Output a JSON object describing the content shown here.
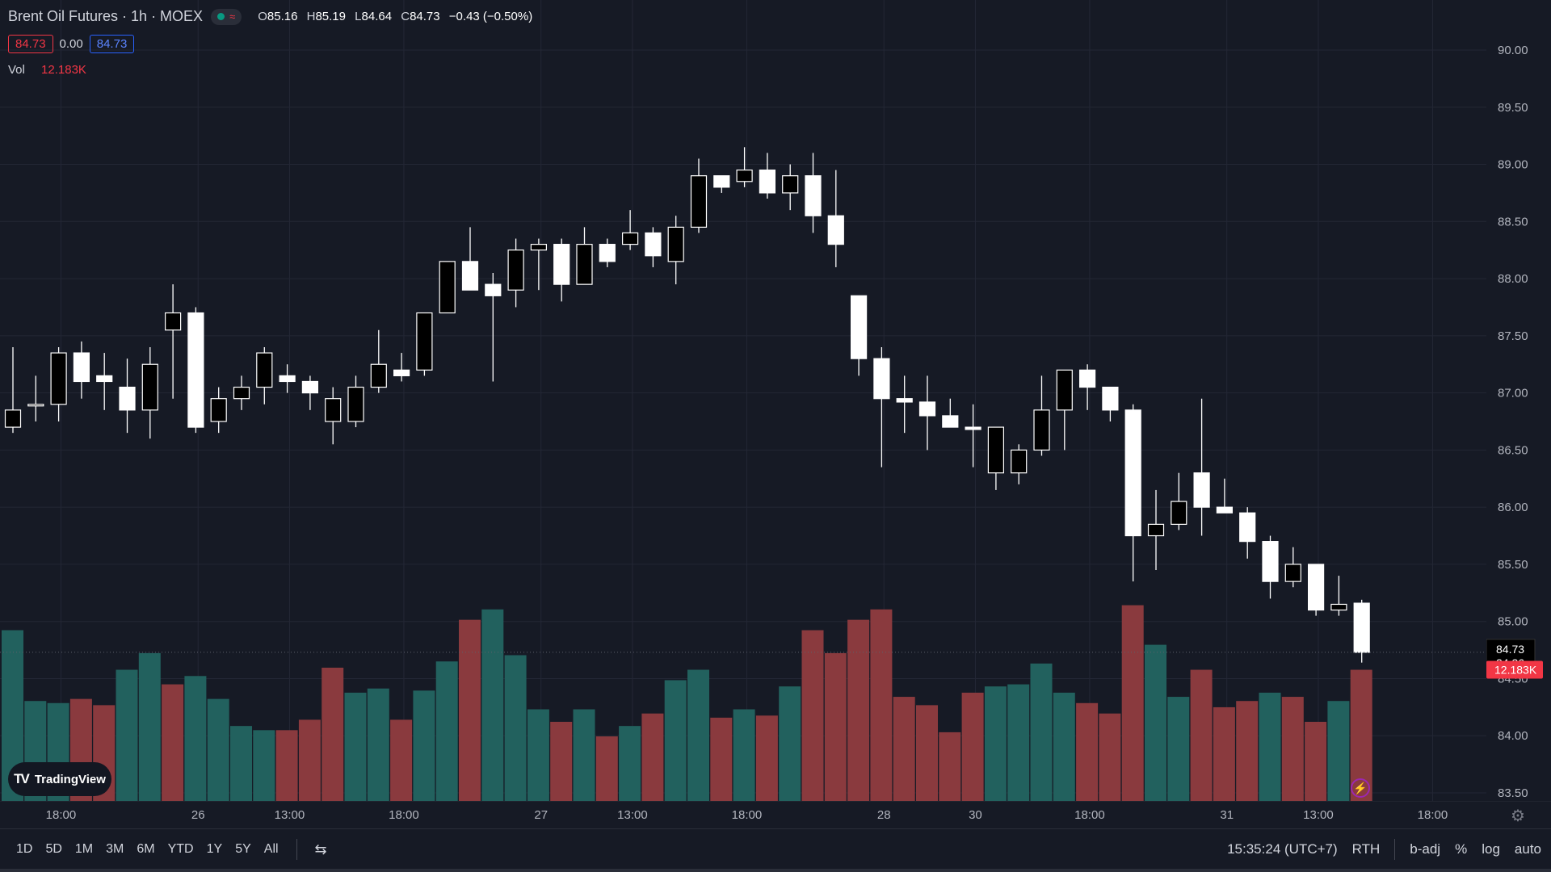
{
  "header": {
    "title": "Brent Oil Futures · 1h · MOEX",
    "ohlc": {
      "o_label": "O",
      "o": "85.16",
      "h_label": "H",
      "h": "85.19",
      "l_label": "L",
      "l": "84.64",
      "c_label": "C",
      "c": "84.73",
      "change": "−0.43 (−0.50%)"
    },
    "bid": "84.73",
    "spread": "0.00",
    "ask": "84.73",
    "volume_label": "Vol",
    "volume_value": "12.183K"
  },
  "logo": {
    "text": "TradingView"
  },
  "price_badge": {
    "price": "84.73",
    "countdown": "24:36"
  },
  "volume_badge": "12.183K",
  "time_ticks": [
    {
      "label": "18:00",
      "i": 2.1
    },
    {
      "label": "26",
      "i": 8.1
    },
    {
      "label": "13:00",
      "i": 12.1
    },
    {
      "label": "18:00",
      "i": 17.1
    },
    {
      "label": "27",
      "i": 23.1
    },
    {
      "label": "13:00",
      "i": 27.1
    },
    {
      "label": "18:00",
      "i": 32.1
    },
    {
      "label": "28",
      "i": 38.1
    },
    {
      "label": "30",
      "i": 42.1
    },
    {
      "label": "18:00",
      "i": 47.1
    },
    {
      "label": "31",
      "i": 53.1
    },
    {
      "label": "13:00",
      "i": 57.1
    },
    {
      "label": "18:00",
      "i": 62.1
    }
  ],
  "ranges": [
    "1D",
    "5D",
    "1M",
    "3M",
    "6M",
    "YTD",
    "1Y",
    "5Y",
    "All"
  ],
  "status": {
    "clock": "15:35:24 (UTC+7)",
    "session": "RTH",
    "adj": "b-adj",
    "pct": "%",
    "log": "log",
    "auto": "auto"
  },
  "colors": {
    "bg": "#161a25",
    "up": "#ffffff",
    "down": "#000000",
    "vol_up": "#22615e",
    "vol_down": "#8a3a3e",
    "badge_red": "#f23645"
  },
  "chart_data": {
    "type": "candlestick",
    "price_axis": {
      "ticks": [
        90.0,
        89.5,
        89.0,
        88.5,
        88.0,
        87.5,
        87.0,
        86.5,
        86.0,
        85.5,
        85.0,
        84.5,
        84.0,
        83.5
      ]
    },
    "candles": [
      {
        "o": 86.7,
        "h": 87.4,
        "l": 86.65,
        "c": 86.85
      },
      {
        "o": 86.9,
        "h": 87.15,
        "l": 86.75,
        "c": 86.9
      },
      {
        "o": 86.9,
        "h": 87.4,
        "l": 86.75,
        "c": 87.35
      },
      {
        "o": 87.35,
        "h": 87.45,
        "l": 86.95,
        "c": 87.1
      },
      {
        "o": 87.15,
        "h": 87.35,
        "l": 86.85,
        "c": 87.1
      },
      {
        "o": 87.05,
        "h": 87.3,
        "l": 86.65,
        "c": 86.85
      },
      {
        "o": 86.85,
        "h": 87.4,
        "l": 86.6,
        "c": 87.25
      },
      {
        "o": 87.55,
        "h": 87.95,
        "l": 86.95,
        "c": 87.7
      },
      {
        "o": 87.7,
        "h": 87.75,
        "l": 86.65,
        "c": 86.7
      },
      {
        "o": 86.75,
        "h": 87.05,
        "l": 86.65,
        "c": 86.95
      },
      {
        "o": 86.95,
        "h": 87.15,
        "l": 86.85,
        "c": 87.05
      },
      {
        "o": 87.05,
        "h": 87.4,
        "l": 86.9,
        "c": 87.35
      },
      {
        "o": 87.15,
        "h": 87.25,
        "l": 87.0,
        "c": 87.1
      },
      {
        "o": 87.1,
        "h": 87.15,
        "l": 86.85,
        "c": 87.0
      },
      {
        "o": 86.75,
        "h": 87.05,
        "l": 86.55,
        "c": 86.95
      },
      {
        "o": 86.75,
        "h": 87.15,
        "l": 86.7,
        "c": 87.05
      },
      {
        "o": 87.05,
        "h": 87.55,
        "l": 87.0,
        "c": 87.25
      },
      {
        "o": 87.2,
        "h": 87.35,
        "l": 87.1,
        "c": 87.15
      },
      {
        "o": 87.2,
        "h": 87.7,
        "l": 87.15,
        "c": 87.7
      },
      {
        "o": 87.7,
        "h": 88.15,
        "l": 87.7,
        "c": 88.15
      },
      {
        "o": 88.15,
        "h": 88.45,
        "l": 87.9,
        "c": 87.9
      },
      {
        "o": 87.95,
        "h": 88.05,
        "l": 87.1,
        "c": 87.85
      },
      {
        "o": 87.9,
        "h": 88.35,
        "l": 87.75,
        "c": 88.25
      },
      {
        "o": 88.25,
        "h": 88.35,
        "l": 87.9,
        "c": 88.3
      },
      {
        "o": 88.3,
        "h": 88.35,
        "l": 87.8,
        "c": 87.95
      },
      {
        "o": 87.95,
        "h": 88.45,
        "l": 87.95,
        "c": 88.3
      },
      {
        "o": 88.3,
        "h": 88.35,
        "l": 88.1,
        "c": 88.15
      },
      {
        "o": 88.3,
        "h": 88.6,
        "l": 88.25,
        "c": 88.4
      },
      {
        "o": 88.4,
        "h": 88.45,
        "l": 88.1,
        "c": 88.2
      },
      {
        "o": 88.15,
        "h": 88.55,
        "l": 87.95,
        "c": 88.45
      },
      {
        "o": 88.45,
        "h": 89.05,
        "l": 88.4,
        "c": 88.9
      },
      {
        "o": 88.9,
        "h": 88.9,
        "l": 88.75,
        "c": 88.8
      },
      {
        "o": 88.85,
        "h": 89.15,
        "l": 88.8,
        "c": 88.95
      },
      {
        "o": 88.95,
        "h": 89.1,
        "l": 88.7,
        "c": 88.75
      },
      {
        "o": 88.75,
        "h": 89.0,
        "l": 88.6,
        "c": 88.9
      },
      {
        "o": 88.9,
        "h": 89.1,
        "l": 88.4,
        "c": 88.55
      },
      {
        "o": 88.55,
        "h": 88.95,
        "l": 88.1,
        "c": 88.3
      },
      {
        "o": 87.85,
        "h": 87.85,
        "l": 87.15,
        "c": 87.3
      },
      {
        "o": 87.3,
        "h": 87.4,
        "l": 86.35,
        "c": 86.95
      },
      {
        "o": 86.95,
        "h": 87.15,
        "l": 86.65,
        "c": 86.92
      },
      {
        "o": 86.92,
        "h": 87.15,
        "l": 86.5,
        "c": 86.8
      },
      {
        "o": 86.8,
        "h": 86.95,
        "l": 86.7,
        "c": 86.7
      },
      {
        "o": 86.7,
        "h": 86.9,
        "l": 86.35,
        "c": 86.68
      },
      {
        "o": 86.3,
        "h": 86.7,
        "l": 86.15,
        "c": 86.7
      },
      {
        "o": 86.3,
        "h": 86.55,
        "l": 86.2,
        "c": 86.5
      },
      {
        "o": 86.5,
        "h": 87.15,
        "l": 86.45,
        "c": 86.85
      },
      {
        "o": 86.85,
        "h": 87.2,
        "l": 86.5,
        "c": 87.2
      },
      {
        "o": 87.2,
        "h": 87.25,
        "l": 86.85,
        "c": 87.05
      },
      {
        "o": 87.05,
        "h": 87.05,
        "l": 86.75,
        "c": 86.85
      },
      {
        "o": 86.85,
        "h": 86.9,
        "l": 85.35,
        "c": 85.75
      },
      {
        "o": 85.75,
        "h": 86.15,
        "l": 85.45,
        "c": 85.85
      },
      {
        "o": 85.85,
        "h": 86.3,
        "l": 85.8,
        "c": 86.05
      },
      {
        "o": 86.3,
        "h": 86.95,
        "l": 85.75,
        "c": 86.0
      },
      {
        "o": 86.0,
        "h": 86.25,
        "l": 85.95,
        "c": 85.95
      },
      {
        "o": 85.95,
        "h": 86.0,
        "l": 85.55,
        "c": 85.7
      },
      {
        "o": 85.7,
        "h": 85.75,
        "l": 85.2,
        "c": 85.35
      },
      {
        "o": 85.35,
        "h": 85.65,
        "l": 85.3,
        "c": 85.5
      },
      {
        "o": 85.5,
        "h": 85.5,
        "l": 85.05,
        "c": 85.1
      },
      {
        "o": 85.1,
        "h": 85.4,
        "l": 85.05,
        "c": 85.15
      },
      {
        "o": 85.16,
        "h": 85.19,
        "l": 84.64,
        "c": 84.73
      }
    ],
    "volume": {
      "values": [
        82,
        48,
        47,
        49,
        46,
        63,
        71,
        56,
        60,
        49,
        36,
        34,
        34,
        39,
        64,
        52,
        54,
        39,
        53,
        67,
        87,
        92,
        70,
        44,
        38,
        44,
        31,
        36,
        42,
        58,
        63,
        40,
        44,
        41,
        55,
        82,
        71,
        87,
        92,
        50,
        46,
        33,
        52,
        55,
        56,
        66,
        52,
        47,
        42,
        94,
        75,
        50,
        63,
        45,
        48,
        52,
        50,
        38,
        48,
        63
      ],
      "up": [
        true,
        true,
        true,
        false,
        false,
        true,
        true,
        false,
        true,
        true,
        true,
        true,
        false,
        false,
        false,
        true,
        true,
        false,
        true,
        true,
        false,
        true,
        true,
        true,
        false,
        true,
        false,
        true,
        false,
        true,
        true,
        false,
        true,
        false,
        true,
        false,
        false,
        false,
        false,
        false,
        false,
        false,
        false,
        true,
        true,
        true,
        true,
        false,
        false,
        false,
        true,
        true,
        false,
        false,
        false,
        true,
        false,
        false,
        true,
        false
      ]
    }
  }
}
